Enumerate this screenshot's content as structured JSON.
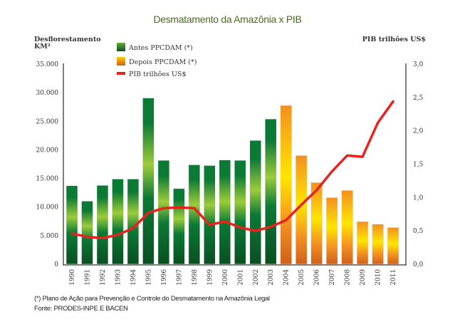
{
  "chart_data": {
    "type": "bar",
    "title": "Desmatamento da Amazônia x PIB",
    "ylabel": "Desflorestamento",
    "ylabel_unit": "KM²",
    "y2label": "PIB trilhões US$",
    "ylim": [
      0,
      35000
    ],
    "y2lim": [
      0,
      3.0
    ],
    "yticks": [
      "0",
      "5.000",
      "10.000",
      "15.000",
      "20.000",
      "25.000",
      "30.000",
      "35.000"
    ],
    "y2ticks": [
      "0,0",
      "0,5",
      "1,0",
      "1,5",
      "2,0",
      "2,5",
      "3,0"
    ],
    "categories": [
      "1990",
      "1991",
      "1992",
      "1993",
      "1994",
      "1995",
      "1996",
      "1997",
      "1998",
      "1999",
      "2000",
      "2001",
      "2002",
      "2003",
      "2004",
      "2005",
      "2006",
      "2007",
      "2008",
      "2009",
      "2010",
      "2011"
    ],
    "series": [
      {
        "name": "Antes PPCDAM (*)",
        "type": "bar",
        "axis": "left",
        "values": [
          13730,
          11030,
          13786,
          14896,
          14896,
          29059,
          18161,
          13227,
          17383,
          17259,
          18226,
          18165,
          21651,
          25396,
          null,
          null,
          null,
          null,
          null,
          null,
          null,
          null
        ]
      },
      {
        "name": "Depois PPCDAM (*)",
        "type": "bar",
        "axis": "left",
        "values": [
          null,
          null,
          null,
          null,
          null,
          null,
          null,
          null,
          null,
          null,
          null,
          null,
          null,
          null,
          27772,
          19014,
          14286,
          11651,
          12911,
          7464,
          7000,
          6418
        ]
      },
      {
        "name": "PIB trilhões US$",
        "type": "line",
        "axis": "right",
        "values": [
          0.46,
          0.41,
          0.39,
          0.44,
          0.54,
          0.77,
          0.84,
          0.85,
          0.84,
          0.59,
          0.64,
          0.55,
          0.5,
          0.56,
          0.66,
          0.89,
          1.11,
          1.39,
          1.63,
          1.61,
          2.12,
          2.44
        ]
      }
    ],
    "legend": "top-left",
    "grid": false
  },
  "colors": {
    "green_dark": "#0a4f22",
    "green_mid": "#0b7a35",
    "green_light": "#9ccc3a",
    "orange_dark": "#d0601a",
    "orange_mid": "#f39020",
    "yellow": "#ffe600",
    "line": "#e8231f",
    "title": "#4a6a1a"
  },
  "footnote": "(*)  Plano de Ação para Prevenção e Controle do Desmatamento na Amazônia Legal",
  "source": "Fonte: PRODES-INPE E BACEN"
}
